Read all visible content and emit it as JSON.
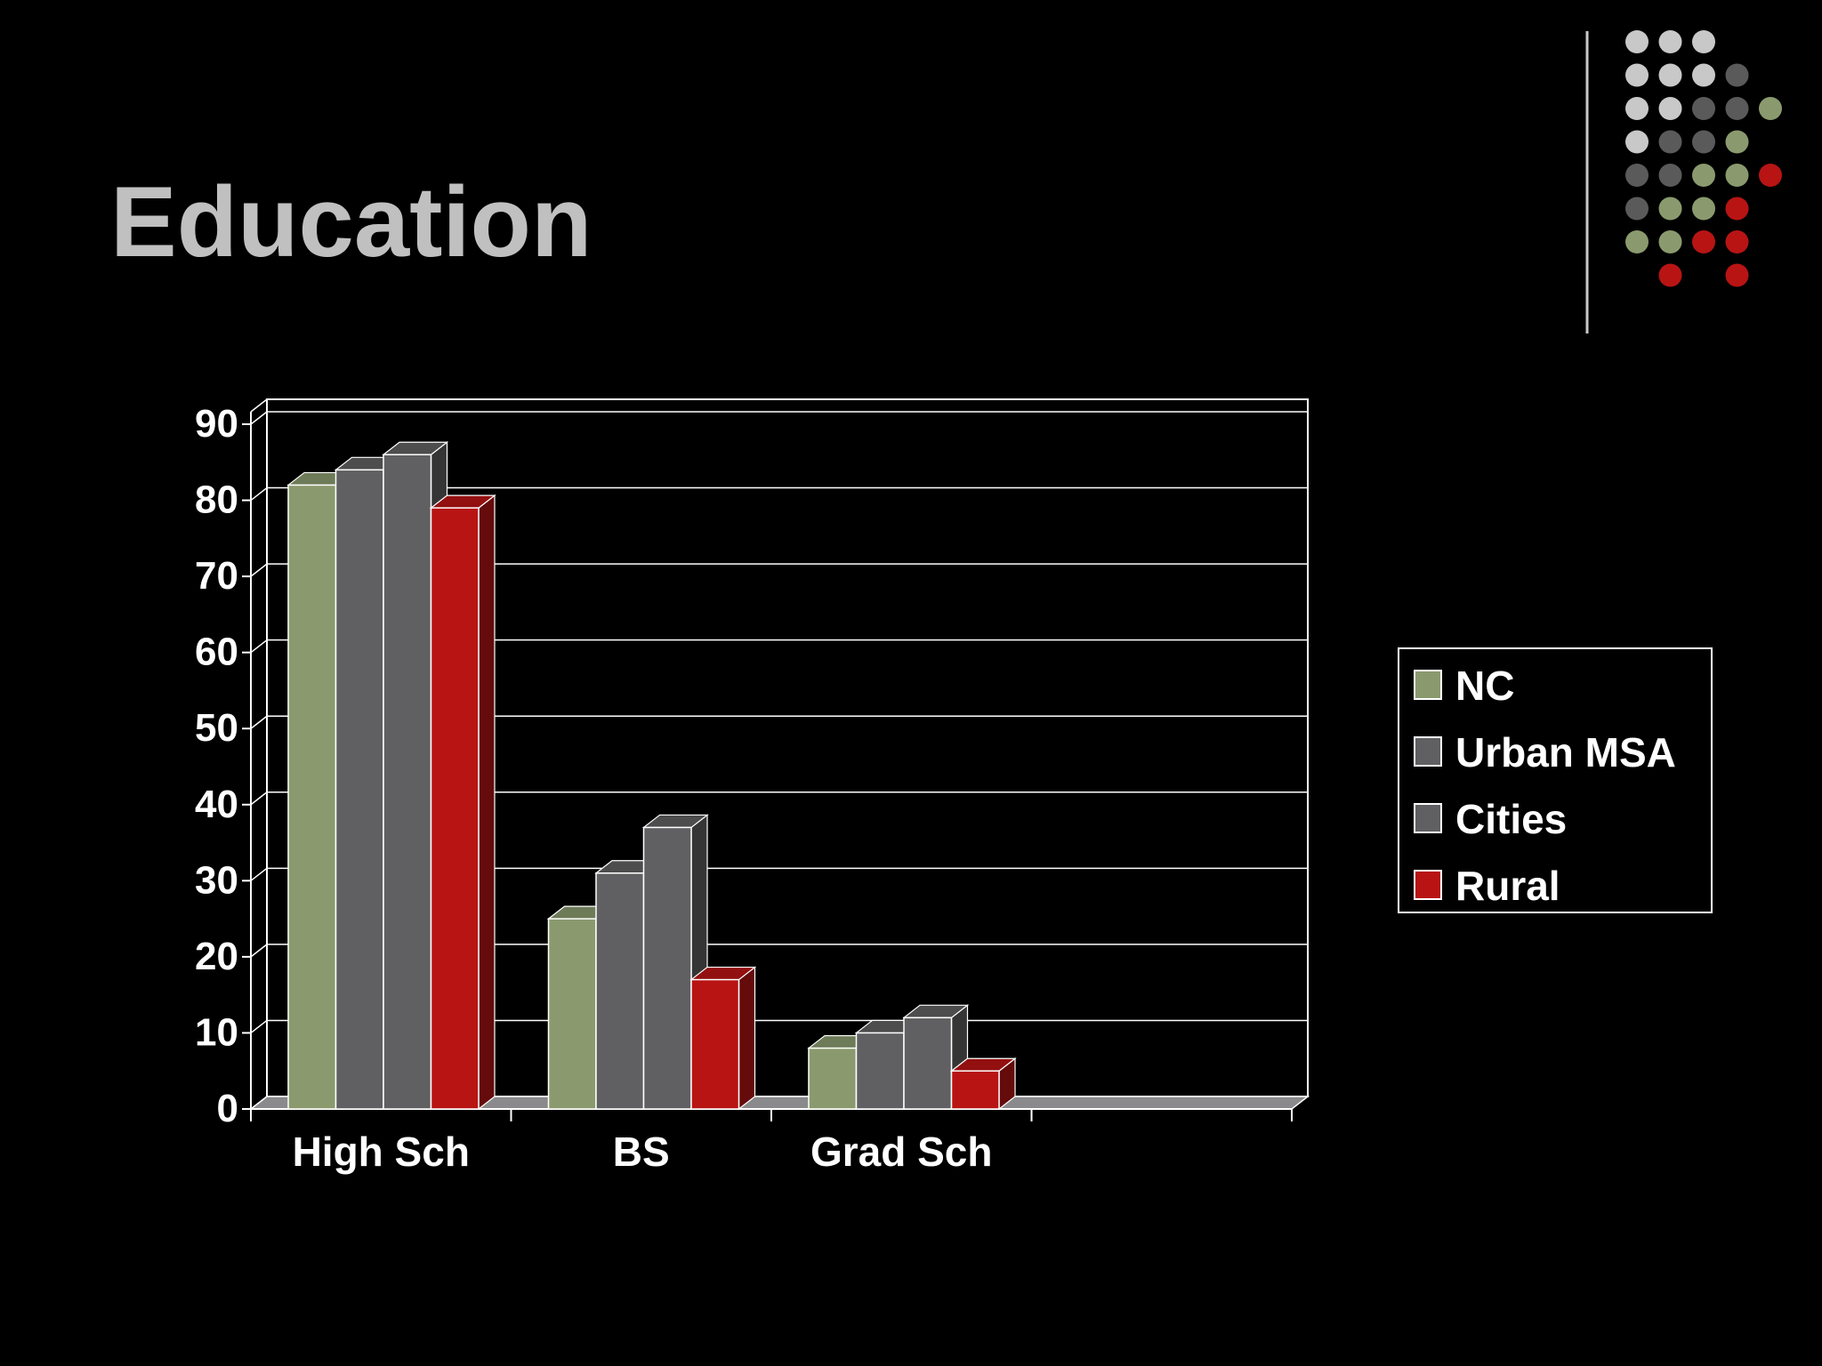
{
  "slide": {
    "title": "Education"
  },
  "decor": {
    "dot_palette": {
      "L": "#c8c8c8",
      "D": "#5a5a5a",
      "G": "#8a9a6e",
      "R": "#b81414"
    },
    "dot_pattern": [
      "LLL  ",
      "LLLD ",
      "LLDDG",
      "LDDG ",
      "DDGGR",
      "DGGR ",
      "GGRR ",
      " R R "
    ],
    "divider_color": "#c8c8c8"
  },
  "chart_data": {
    "type": "bar",
    "style": "3d-clustered-column",
    "title": "",
    "xlabel": "",
    "ylabel": "",
    "ylim": [
      0,
      90
    ],
    "yticks": [
      "0",
      "10",
      "20",
      "30",
      "40",
      "50",
      "60",
      "70",
      "80",
      "90"
    ],
    "grid": true,
    "legend_position": "right",
    "categories": [
      "High Sch",
      "BS",
      "Grad Sch",
      ""
    ],
    "series": [
      {
        "name": "NC",
        "color": "#8a9a6e",
        "values": [
          82,
          25,
          8,
          null
        ]
      },
      {
        "name": "Urban MSA",
        "color": "#606062",
        "values": [
          84,
          31,
          10,
          null
        ]
      },
      {
        "name": "Cities",
        "color": "#606062",
        "values": [
          86,
          37,
          12,
          null
        ]
      },
      {
        "name": "Rural",
        "color": "#b81414",
        "values": [
          79,
          17,
          5,
          null
        ]
      }
    ]
  }
}
